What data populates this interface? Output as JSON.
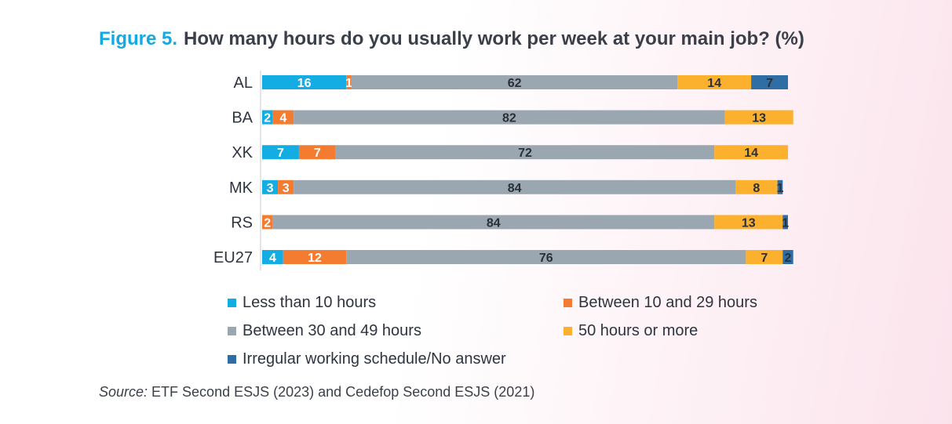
{
  "title": {
    "figure": "Figure 5.",
    "text": "How many hours do you usually work per week at your main job? (%)"
  },
  "chart_data": {
    "type": "bar",
    "orientation": "horizontal-stacked",
    "categories": [
      "AL",
      "BA",
      "XK",
      "MK",
      "RS",
      "EU27"
    ],
    "series": [
      {
        "name": "Less than 10 hours",
        "color": "#13ade3",
        "label_color": "#ffffff",
        "values": [
          16,
          2,
          7,
          3,
          0,
          4
        ]
      },
      {
        "name": "Between 10 and 29 hours",
        "color": "#f47c30",
        "label_color": "#ffffff",
        "values": [
          1,
          4,
          7,
          3,
          2,
          12
        ]
      },
      {
        "name": "Between 30 and 49 hours",
        "color": "#9aa7b0",
        "label_color": "#2a2f38",
        "values": [
          62,
          82,
          72,
          84,
          84,
          76
        ]
      },
      {
        "name": "50 hours or more",
        "color": "#fbb02e",
        "label_color": "#2a2f38",
        "values": [
          14,
          13,
          14,
          8,
          13,
          7
        ]
      },
      {
        "name": "Irregular working schedule/No answer",
        "color": "#2f6ea5",
        "label_color": "#2a2f38",
        "values": [
          7,
          0,
          0,
          1,
          1,
          2
        ]
      }
    ],
    "xlim": [
      0,
      100
    ],
    "legend_position": "bottom"
  },
  "source": {
    "label": "Source:",
    "text": "ETF Second ESJS (2023) and Cedefop Second ESJS (2021)"
  }
}
